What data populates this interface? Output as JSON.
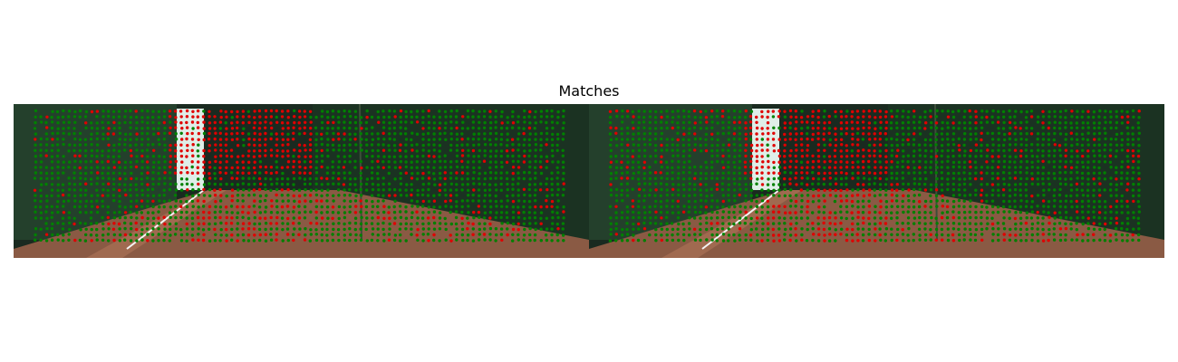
{
  "figure": {
    "title": "Matches"
  },
  "images": [
    {
      "name": "left-image",
      "description_colors": {
        "match": "#008000",
        "outlier": "#e00000"
      }
    },
    {
      "name": "right-image",
      "description_colors": {
        "match": "#008000",
        "outlier": "#e00000"
      }
    }
  ],
  "colors": {
    "inlier": "#008000",
    "outlier": "#e00000",
    "road": "#8a5a44",
    "foliage": "#1f3d26",
    "sky": "#e8f2ee"
  }
}
